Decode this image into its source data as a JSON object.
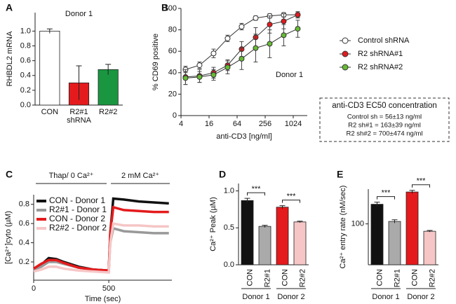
{
  "chart_data": [
    {
      "type": "bar",
      "panel": "A",
      "title": "Donor 1",
      "ylabel": "RHBDL2 mRNA",
      "xlabel": "shRNA",
      "categories": [
        "CON",
        "R2#1",
        "R2#2"
      ],
      "values": [
        1.0,
        0.3,
        0.48
      ],
      "errors": [
        0.03,
        0.23,
        0.07
      ],
      "colors": [
        "#ffffff",
        "#e41a1c",
        "#1a9641"
      ],
      "ylim": [
        0,
        1.25
      ],
      "yticks": [
        {
          "value": 0,
          "label": "0.0"
        },
        0.2,
        0.4,
        0.6,
        0.8,
        {
          "value": 1,
          "label": "1.0"
        }
      ]
    },
    {
      "type": "line",
      "panel": "B",
      "ylabel": "% CD69 positive",
      "xlabel": "anti-CD3 [ng/ml]",
      "xscale": "log2",
      "annotation": "Donor 1",
      "x": [
        5,
        10,
        20,
        40,
        80,
        160,
        320,
        640,
        1280
      ],
      "series": [
        {
          "name": "Control shRNA",
          "color": "#ffffff",
          "values": [
            43,
            47,
            58,
            72,
            83,
            91,
            93,
            94,
            94
          ],
          "errors": [
            3,
            3,
            4,
            3,
            3,
            2,
            2,
            2,
            2
          ]
        },
        {
          "name": "R2 shRNA#1",
          "color": "#e41a1c",
          "values": [
            36,
            37,
            40,
            47,
            62,
            73,
            85,
            88,
            94
          ],
          "errors": [
            7,
            6,
            5,
            5,
            7,
            9,
            8,
            7,
            3
          ]
        },
        {
          "name": "R2 shRNA#2",
          "color": "#66bb33",
          "values": [
            35,
            36,
            38,
            45,
            53,
            63,
            67,
            75,
            81
          ],
          "errors": [
            6,
            5,
            5,
            6,
            10,
            13,
            13,
            10,
            8
          ]
        }
      ],
      "line_color": "#333333",
      "xlim": [
        4,
        2048
      ],
      "xticks": [
        4,
        16,
        64,
        256,
        1024
      ],
      "ylim": [
        0,
        100
      ],
      "yticks": [
        0,
        20,
        40,
        60,
        80,
        100
      ],
      "box": {
        "title": "anti-CD3 EC50 concentration",
        "lines": [
          "Control sh = 56±13 ng/ml",
          "R2 sh#1 = 163±39 ng/ml",
          "R2 sh#2 = 700±474 ng/ml"
        ]
      }
    },
    {
      "type": "trace",
      "panel": "C",
      "ylabel": "[Ca²⁺]cyto (µM)",
      "xlabel": "Time (sec)",
      "phases": [
        {
          "label": "Thap/ 0 Ca²⁺",
          "start": 0,
          "end": 500
        },
        {
          "label": "2 mM Ca²⁺",
          "start": 500,
          "end": 920
        }
      ],
      "x": [
        0,
        50,
        100,
        150,
        200,
        300,
        400,
        500,
        510,
        530,
        600,
        700,
        800,
        900
      ],
      "series": [
        {
          "name": "CON - Donor 1",
          "color": "#111111",
          "values": [
            0.13,
            0.17,
            0.24,
            0.23,
            0.2,
            0.15,
            0.12,
            0.11,
            0.5,
            0.86,
            0.85,
            0.83,
            0.82,
            0.81
          ]
        },
        {
          "name": "R2#1 - Donor 1",
          "color": "#999999",
          "values": [
            0.12,
            0.15,
            0.2,
            0.2,
            0.18,
            0.14,
            0.12,
            0.11,
            0.4,
            0.55,
            0.52,
            0.51,
            0.5,
            0.5
          ]
        },
        {
          "name": "CON - Donor 2",
          "color": "#e41a1c",
          "values": [
            0.13,
            0.18,
            0.22,
            0.22,
            0.19,
            0.14,
            0.12,
            0.11,
            0.5,
            0.77,
            0.74,
            0.73,
            0.72,
            0.72
          ]
        },
        {
          "name": "R2#2 - Donor 2",
          "color": "#f6c6c6",
          "values": [
            0.1,
            0.12,
            0.15,
            0.15,
            0.13,
            0.11,
            0.1,
            0.09,
            0.4,
            0.6,
            0.58,
            0.58,
            0.57,
            0.57
          ]
        }
      ],
      "xlim": [
        0,
        920
      ],
      "xticks": [
        0,
        500
      ],
      "ylim": [
        0.01,
        0.9
      ],
      "yticks": [
        0.2,
        0.4,
        0.6,
        0.8
      ]
    },
    {
      "type": "bar",
      "panel": "D",
      "ylabel": "Ca²⁺ Peak (µM)",
      "categories": [
        "CON",
        "R2#1",
        "CON",
        "R2#2"
      ],
      "values": [
        0.87,
        0.52,
        0.78,
        0.58
      ],
      "errors": [
        0.03,
        0.015,
        0.02,
        0.01
      ],
      "colors": [
        "#111111",
        "#aaaaaa",
        "#e41a1c",
        "#f6c6c6"
      ],
      "groups": [
        "Donor 1",
        "Donor 2"
      ],
      "significance": [
        "***",
        "***"
      ],
      "ylim": [
        0,
        1.1
      ],
      "yticks": [
        {
          "value": 0,
          "label": "0.0"
        },
        0.5,
        {
          "value": 1,
          "label": "1.0"
        }
      ]
    },
    {
      "type": "bar",
      "panel": "E",
      "ylabel": "Ca²⁺ entry rate (nM/sec)",
      "categories": [
        "CON",
        "R2#1",
        "CON",
        "R2#2"
      ],
      "values": [
        148,
        106,
        178,
        82
      ],
      "errors": [
        5,
        4,
        4,
        2
      ],
      "colors": [
        "#111111",
        "#aaaaaa",
        "#e41a1c",
        "#f6c6c6"
      ],
      "groups": [
        "Donor 1",
        "Donor 2"
      ],
      "significance": [
        "***",
        "***"
      ],
      "ylim": [
        0,
        185
      ],
      "yticks": [
        100
      ]
    }
  ]
}
